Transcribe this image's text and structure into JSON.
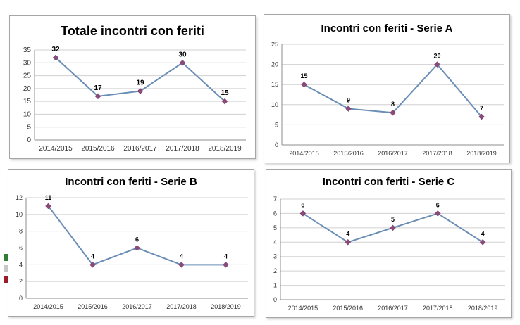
{
  "chart_data": [
    {
      "type": "line",
      "title": "Totale incontri con feriti",
      "categories": [
        "2014/2015",
        "2015/2016",
        "2016/2017",
        "2017/2018",
        "2018/2019"
      ],
      "values": [
        32,
        17,
        19,
        30,
        15
      ],
      "ylim": [
        0,
        35
      ],
      "ytick_step": 5,
      "grid": true,
      "line_color": "#6a8db5",
      "marker_color": "#8c4a7a"
    },
    {
      "type": "line",
      "title": "Incontri con feriti - Serie A",
      "categories": [
        "2014/2015",
        "2015/2016",
        "2016/2017",
        "2017/2018",
        "2018/2019"
      ],
      "values": [
        15,
        9,
        8,
        20,
        7
      ],
      "ylim": [
        0,
        25
      ],
      "ytick_step": 5,
      "grid": true,
      "line_color": "#6a8db5",
      "marker_color": "#8c4a7a"
    },
    {
      "type": "line",
      "title": "Incontri con feriti  - Serie B",
      "categories": [
        "2014/2015",
        "2015/2016",
        "2016/2017",
        "2017/2018",
        "2018/2019"
      ],
      "values": [
        11,
        4,
        6,
        4,
        4
      ],
      "ylim": [
        0,
        12
      ],
      "ytick_step": 2,
      "grid": true,
      "line_color": "#6a8db5",
      "marker_color": "#8c4a7a"
    },
    {
      "type": "line",
      "title": "Incontri con feriti  - Serie C",
      "categories": [
        "2014/2015",
        "2015/2016",
        "2016/2017",
        "2017/2018",
        "2018/2019"
      ],
      "values": [
        6,
        4,
        5,
        6,
        4
      ],
      "ylim": [
        0,
        7
      ],
      "ytick_step": 1,
      "grid": true,
      "line_color": "#6a8db5",
      "marker_color": "#8c4a7a"
    }
  ]
}
